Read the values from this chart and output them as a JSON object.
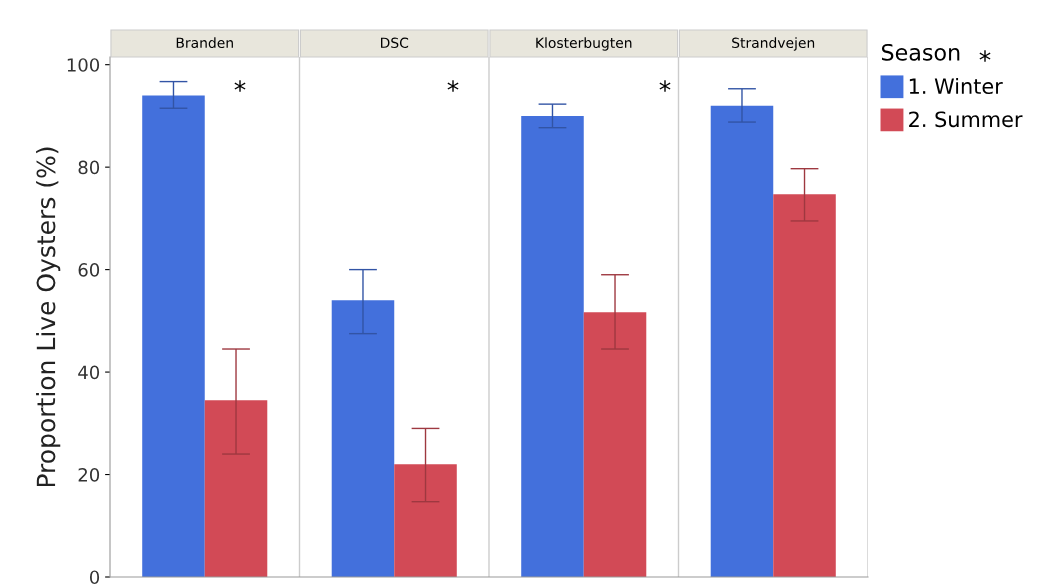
{
  "chart_data": {
    "type": "bar",
    "ylabel": "Proportion Live Oysters (%)",
    "legend_title": "Season",
    "legend": "top right",
    "grid": false,
    "categories": [
      "Branden",
      "DSC",
      "Klosterbugten",
      "Strandvejen"
    ],
    "series": [
      {
        "name": "1. Winter",
        "color": "#4370dc",
        "values": [
          94,
          54,
          90,
          92
        ],
        "errors": [
          [
            91.5,
            96.7
          ],
          [
            47.5,
            60
          ],
          [
            87.7,
            92.3
          ],
          [
            88.8,
            95.3
          ]
        ]
      },
      {
        "name": "2. Summer",
        "color": "#d24a56",
        "values": [
          34.5,
          22,
          51.7,
          74.7
        ],
        "errors": [
          [
            24,
            44.5
          ],
          [
            14.7,
            29
          ],
          [
            44.5,
            59
          ],
          [
            69.5,
            79.7
          ]
        ]
      }
    ],
    "ylim": [
      0,
      101.5
    ],
    "yticks": [
      0,
      20,
      40,
      60,
      80,
      100
    ],
    "annotations": [
      "*",
      "*",
      "*",
      "*"
    ]
  }
}
